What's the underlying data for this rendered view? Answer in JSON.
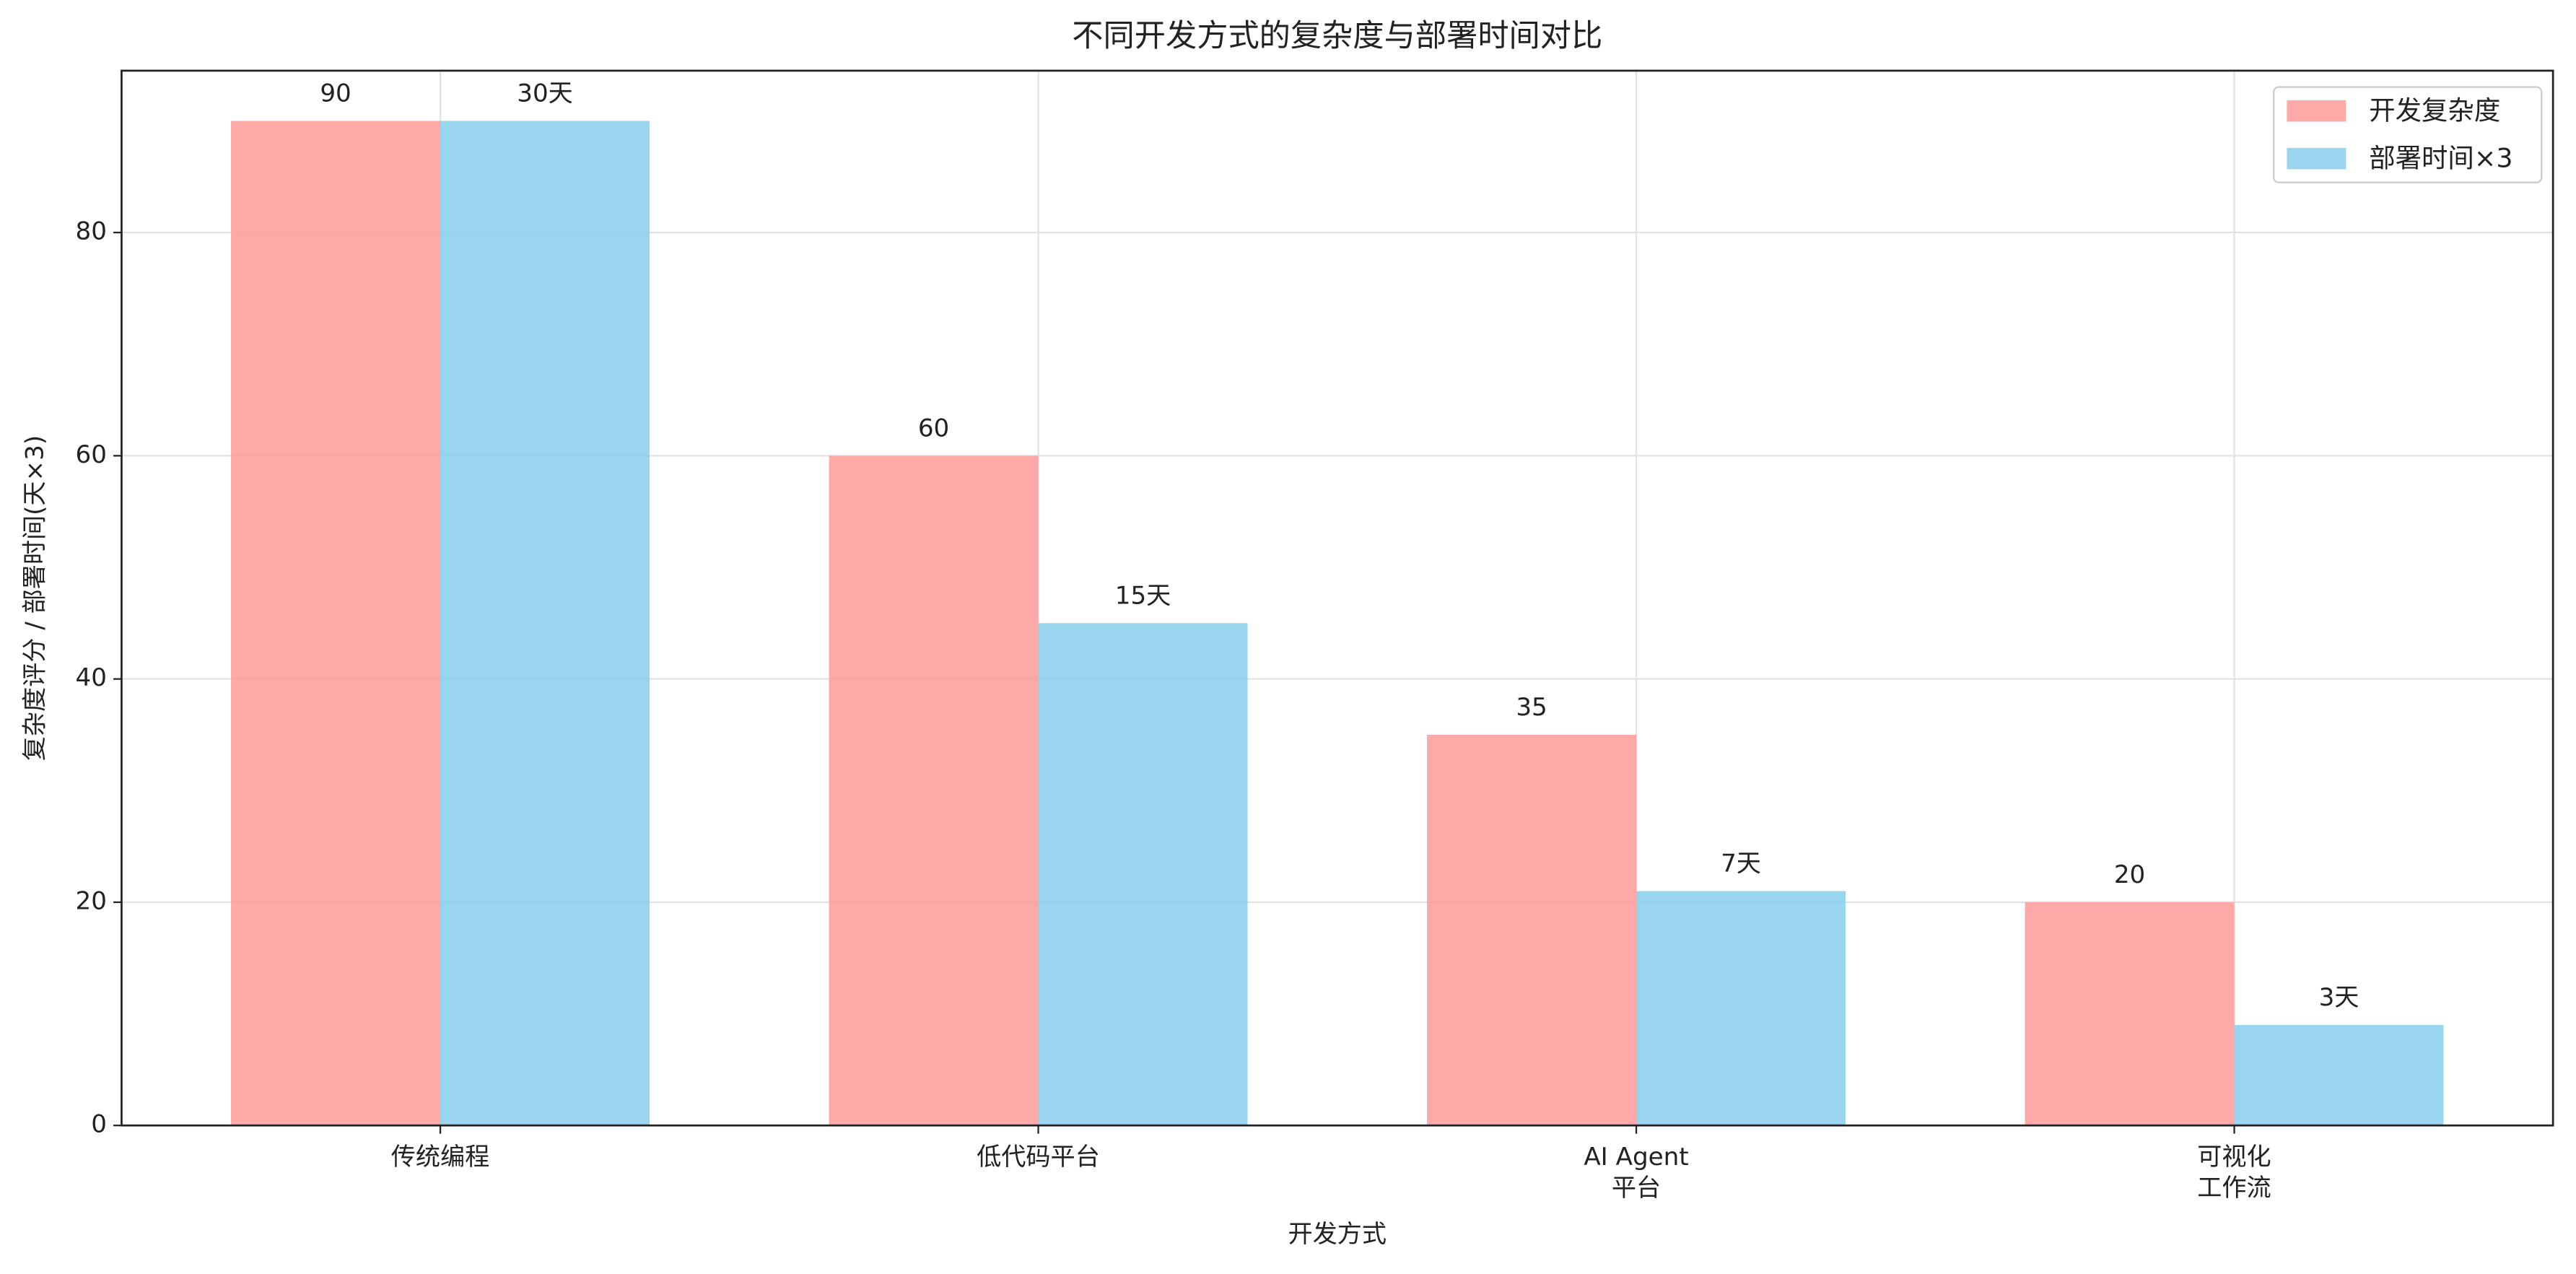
{
  "chart_data": {
    "type": "bar",
    "title": "不同开发方式的复杂度与部署时间对比",
    "x_label": "开发方式",
    "y_label": "复杂度评分 / 部署时间(天×3)",
    "categories": [
      "传统编程",
      "低代码平台",
      "AI Agent\n平台",
      "可视化\n工作流"
    ],
    "series": [
      {
        "name": "开发复杂度",
        "color": "#ff9999",
        "values": [
          90,
          60,
          35,
          20
        ]
      },
      {
        "name": "部署时间×3",
        "color": "#87ceeb",
        "values": [
          90,
          45,
          21,
          9
        ],
        "value_labels": [
          "30天",
          "15天",
          "7天",
          "3天"
        ]
      }
    ],
    "ylim": [
      0,
      94.5
    ],
    "yticks": [
      0,
      20,
      40,
      60,
      80
    ],
    "grid": true,
    "legend": "upper right"
  }
}
